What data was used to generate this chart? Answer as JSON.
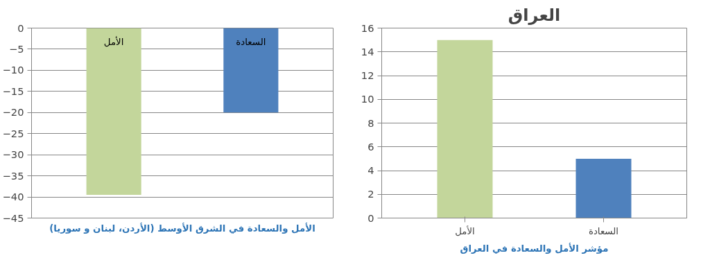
{
  "chart_data": [
    {
      "type": "bar",
      "categories": [
        "الأمل",
        "السعادة"
      ],
      "values": [
        -39.5,
        -20
      ],
      "colors": [
        "#c3d69b",
        "#4f81bd"
      ],
      "ylim": [
        -45,
        0
      ],
      "yticks": [
        -45,
        -40,
        -35,
        -30,
        -25,
        -20,
        -15,
        -10,
        -5,
        0
      ],
      "grid": "y",
      "tick_labels": "y",
      "annotations": [
        "الأمل والسعادة في الشرق الأوسط (الأردن، لبنان و سوريا)"
      ]
    },
    {
      "type": "bar",
      "title": "العراق",
      "categories": [
        "الأمل",
        "السعادة"
      ],
      "values": [
        15,
        5
      ],
      "colors": [
        "#c3d69b",
        "#4f81bd"
      ],
      "ylim": [
        0,
        16
      ],
      "yticks": [
        0,
        2,
        4,
        6,
        8,
        10,
        12,
        14,
        16
      ],
      "grid": "y",
      "annotations": [
        "مؤشر الأمل والسعادة في العراق"
      ]
    }
  ]
}
